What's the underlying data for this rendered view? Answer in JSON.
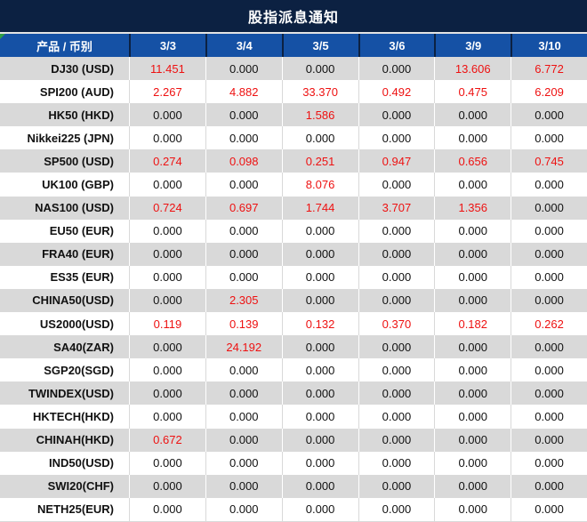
{
  "title": "股指派息通知",
  "colors": {
    "title_bg": "#0C2142",
    "header_bg": "#1551A5",
    "header_divider": "#0C2142",
    "row_alt_bg": "#D9D9D9",
    "row_bg": "#FFFFFF",
    "value_red": "#EE1111",
    "text_dark": "#111111",
    "corner_marker_green": "#2F9E44"
  },
  "table": {
    "header": [
      "产品 / 币别",
      "3/3",
      "3/4",
      "3/5",
      "3/6",
      "3/9",
      "3/10"
    ],
    "rows": [
      {
        "product": "DJ30 (USD)",
        "values": [
          "11.451",
          "0.000",
          "0.000",
          "0.000",
          "13.606",
          "6.772"
        ],
        "red": [
          true,
          false,
          false,
          false,
          true,
          true
        ]
      },
      {
        "product": "SPI200 (AUD)",
        "values": [
          "2.267",
          "4.882",
          "33.370",
          "0.492",
          "0.475",
          "6.209"
        ],
        "red": [
          true,
          true,
          true,
          true,
          true,
          true
        ]
      },
      {
        "product": "HK50 (HKD)",
        "values": [
          "0.000",
          "0.000",
          "1.586",
          "0.000",
          "0.000",
          "0.000"
        ],
        "red": [
          false,
          false,
          true,
          false,
          false,
          false
        ]
      },
      {
        "product": "Nikkei225 (JPN)",
        "values": [
          "0.000",
          "0.000",
          "0.000",
          "0.000",
          "0.000",
          "0.000"
        ],
        "red": [
          false,
          false,
          false,
          false,
          false,
          false
        ]
      },
      {
        "product": "SP500 (USD)",
        "values": [
          "0.274",
          "0.098",
          "0.251",
          "0.947",
          "0.656",
          "0.745"
        ],
        "red": [
          true,
          true,
          true,
          true,
          true,
          true
        ]
      },
      {
        "product": "UK100 (GBP)",
        "values": [
          "0.000",
          "0.000",
          "8.076",
          "0.000",
          "0.000",
          "0.000"
        ],
        "red": [
          false,
          false,
          true,
          false,
          false,
          false
        ]
      },
      {
        "product": "NAS100 (USD)",
        "values": [
          "0.724",
          "0.697",
          "1.744",
          "3.707",
          "1.356",
          "0.000"
        ],
        "red": [
          true,
          true,
          true,
          true,
          true,
          false
        ]
      },
      {
        "product": "EU50 (EUR)",
        "values": [
          "0.000",
          "0.000",
          "0.000",
          "0.000",
          "0.000",
          "0.000"
        ],
        "red": [
          false,
          false,
          false,
          false,
          false,
          false
        ]
      },
      {
        "product": "FRA40 (EUR)",
        "values": [
          "0.000",
          "0.000",
          "0.000",
          "0.000",
          "0.000",
          "0.000"
        ],
        "red": [
          false,
          false,
          false,
          false,
          false,
          false
        ]
      },
      {
        "product": "ES35 (EUR)",
        "values": [
          "0.000",
          "0.000",
          "0.000",
          "0.000",
          "0.000",
          "0.000"
        ],
        "red": [
          false,
          false,
          false,
          false,
          false,
          false
        ]
      },
      {
        "product": "CHINA50(USD)",
        "values": [
          "0.000",
          "2.305",
          "0.000",
          "0.000",
          "0.000",
          "0.000"
        ],
        "red": [
          false,
          true,
          false,
          false,
          false,
          false
        ]
      },
      {
        "product": "US2000(USD)",
        "values": [
          "0.119",
          "0.139",
          "0.132",
          "0.370",
          "0.182",
          "0.262"
        ],
        "red": [
          true,
          true,
          true,
          true,
          true,
          true
        ]
      },
      {
        "product": "SA40(ZAR)",
        "values": [
          "0.000",
          "24.192",
          "0.000",
          "0.000",
          "0.000",
          "0.000"
        ],
        "red": [
          false,
          true,
          false,
          false,
          false,
          false
        ]
      },
      {
        "product": "SGP20(SGD)",
        "values": [
          "0.000",
          "0.000",
          "0.000",
          "0.000",
          "0.000",
          "0.000"
        ],
        "red": [
          false,
          false,
          false,
          false,
          false,
          false
        ]
      },
      {
        "product": "TWINDEX(USD)",
        "values": [
          "0.000",
          "0.000",
          "0.000",
          "0.000",
          "0.000",
          "0.000"
        ],
        "red": [
          false,
          false,
          false,
          false,
          false,
          false
        ]
      },
      {
        "product": "HKTECH(HKD)",
        "values": [
          "0.000",
          "0.000",
          "0.000",
          "0.000",
          "0.000",
          "0.000"
        ],
        "red": [
          false,
          false,
          false,
          false,
          false,
          false
        ]
      },
      {
        "product": "CHINAH(HKD)",
        "values": [
          "0.672",
          "0.000",
          "0.000",
          "0.000",
          "0.000",
          "0.000"
        ],
        "red": [
          true,
          false,
          false,
          false,
          false,
          false
        ]
      },
      {
        "product": "IND50(USD)",
        "values": [
          "0.000",
          "0.000",
          "0.000",
          "0.000",
          "0.000",
          "0.000"
        ],
        "red": [
          false,
          false,
          false,
          false,
          false,
          false
        ]
      },
      {
        "product": "SWI20(CHF)",
        "values": [
          "0.000",
          "0.000",
          "0.000",
          "0.000",
          "0.000",
          "0.000"
        ],
        "red": [
          false,
          false,
          false,
          false,
          false,
          false
        ]
      },
      {
        "product": "NETH25(EUR)",
        "values": [
          "0.000",
          "0.000",
          "0.000",
          "0.000",
          "0.000",
          "0.000"
        ],
        "red": [
          false,
          false,
          false,
          false,
          false,
          false
        ]
      }
    ]
  }
}
